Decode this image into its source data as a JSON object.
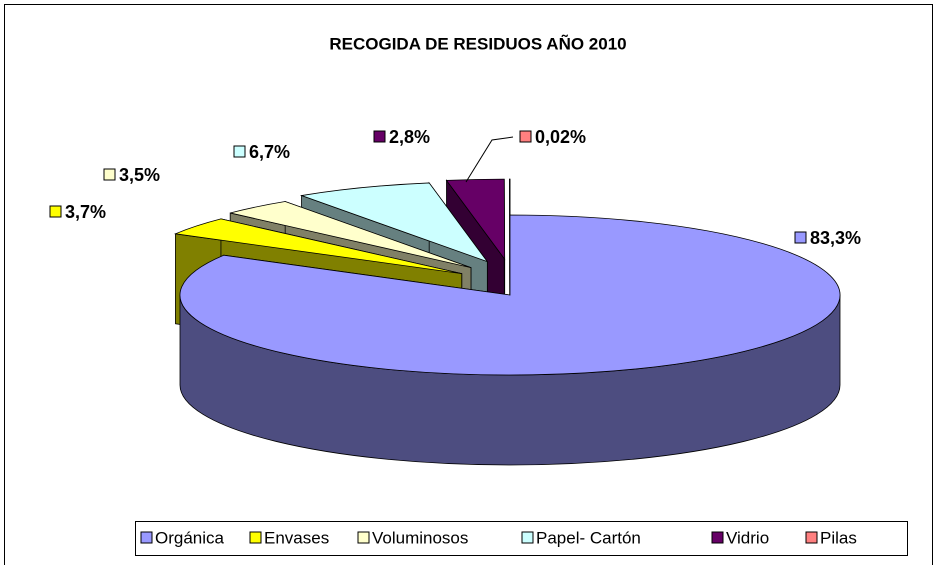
{
  "chart_data": {
    "type": "pie",
    "title": "RECOGIDA DE RESIDUOS AÑO 2010",
    "categories": [
      "Orgánica",
      "Envases",
      "Voluminosos",
      "Papel- Cartón",
      "Vidrio",
      "Pilas"
    ],
    "values": [
      83.3,
      3.7,
      3.5,
      6.7,
      2.8,
      0.02
    ],
    "value_labels": [
      "83,3%",
      "3,7%",
      "3,5%",
      "6,7%",
      "2,8%",
      "0,02%"
    ],
    "colors": [
      "#9999ff",
      "#ffff00",
      "#ffffcc",
      "#ccffff",
      "#660066",
      "#ff8080"
    ],
    "legend": "bottom"
  }
}
